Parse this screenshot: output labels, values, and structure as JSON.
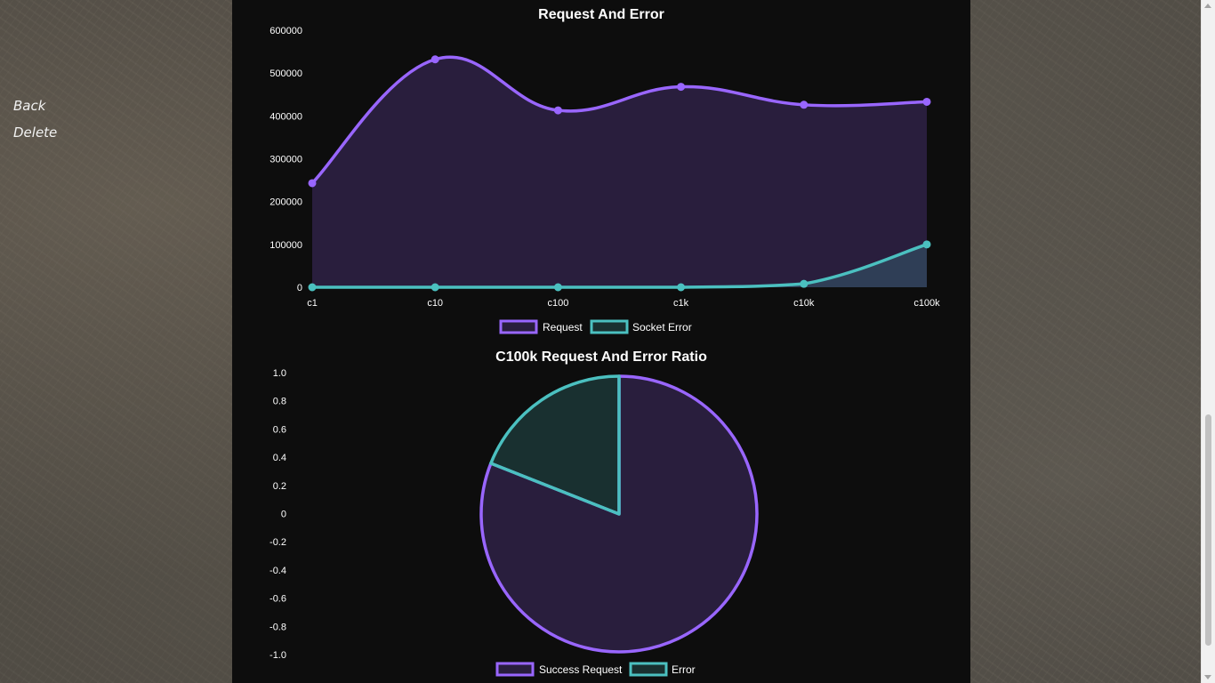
{
  "sidebar": {
    "back_label": "Back",
    "delete_label": "Delete"
  },
  "colors": {
    "request": "#9966ff",
    "error": "#4bc0c0"
  },
  "chart_data": [
    {
      "type": "area",
      "title": "Request And Error",
      "categories": [
        "c1",
        "c10",
        "c100",
        "c1k",
        "c10k",
        "c100k"
      ],
      "series": [
        {
          "name": "Request",
          "values": [
            243000,
            532000,
            413000,
            468000,
            426000,
            433000
          ]
        },
        {
          "name": "Socket Error",
          "values": [
            0,
            0,
            0,
            0,
            8000,
            100000
          ]
        }
      ],
      "ylim": [
        0,
        600000
      ],
      "yticks": [
        "600000",
        "500000",
        "400000",
        "300000",
        "200000",
        "100000",
        "0"
      ],
      "legend": "bottom"
    },
    {
      "type": "pie",
      "title": "C100k Request And Error Ratio",
      "slices": [
        {
          "name": "Success Request",
          "value": 81
        },
        {
          "name": "Error",
          "value": 19
        }
      ],
      "yticks": [
        "1.0",
        "0.8",
        "0.6",
        "0.4",
        "0.2",
        "0",
        "-0.2",
        "-0.4",
        "-0.6",
        "-0.8",
        "-1.0"
      ],
      "legend": "bottom"
    }
  ]
}
